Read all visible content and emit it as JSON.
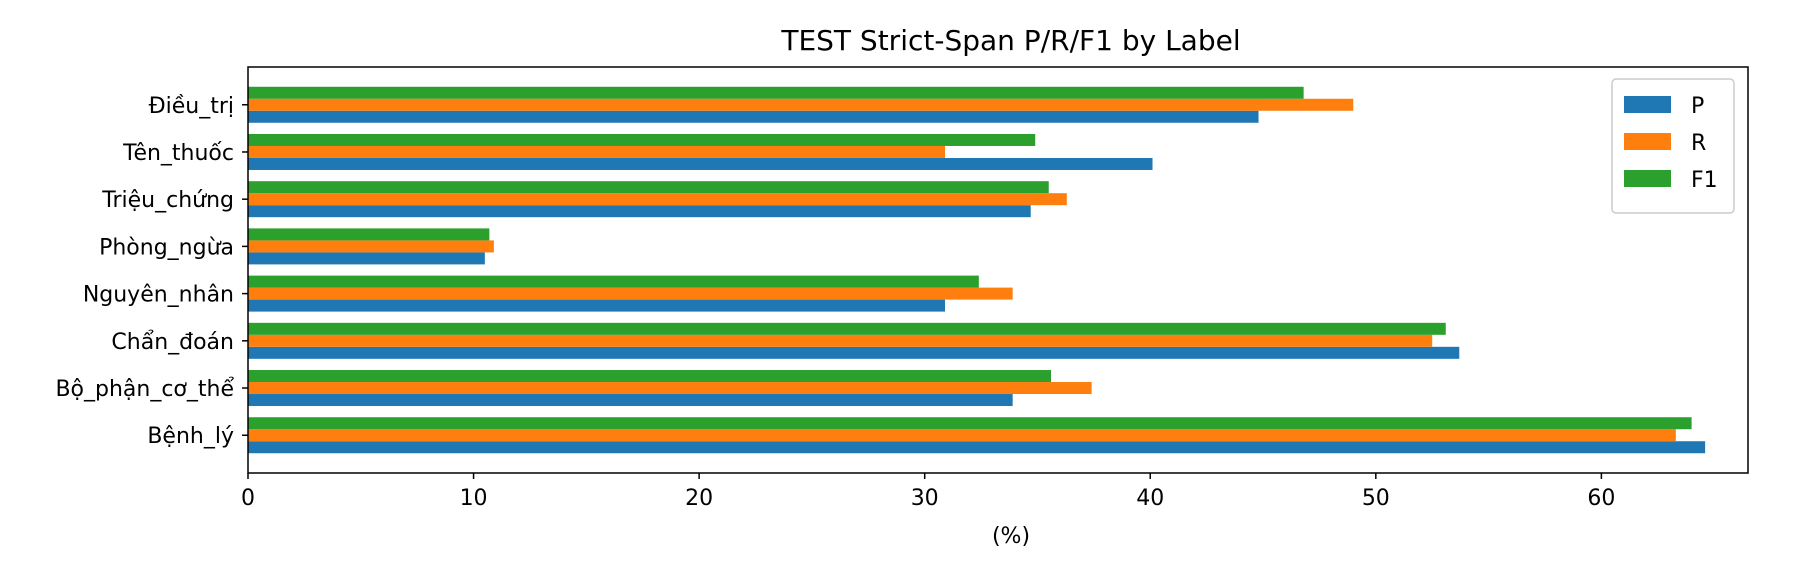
{
  "chart_data": {
    "type": "bar",
    "orientation": "horizontal",
    "title": "TEST Strict-Span P/R/F1 by Label",
    "xlabel": "(%)",
    "ylabel": "",
    "categories": [
      "Bệnh_lý",
      "Bộ_phận_cơ_thể",
      "Chẩn_đoán",
      "Nguyên_nhân",
      "Phòng_ngừa",
      "Triệu_chứng",
      "Tên_thuốc",
      "Điều_trị"
    ],
    "series": [
      {
        "name": "P",
        "color": "#1f77b4",
        "values": [
          64.6,
          33.9,
          53.7,
          30.9,
          10.5,
          34.7,
          40.1,
          44.8
        ]
      },
      {
        "name": "R",
        "color": "#ff7f0e",
        "values": [
          63.3,
          37.4,
          52.5,
          33.9,
          10.9,
          36.3,
          30.9,
          49.0
        ]
      },
      {
        "name": "F1",
        "color": "#2ca02c",
        "values": [
          64.0,
          35.6,
          53.1,
          32.4,
          10.7,
          35.5,
          34.9,
          46.8
        ]
      }
    ],
    "xlim": [
      0,
      66.5
    ],
    "xticks": [
      0,
      10,
      20,
      30,
      40,
      50,
      60
    ],
    "grid": false,
    "legend_position": "top-right"
  }
}
